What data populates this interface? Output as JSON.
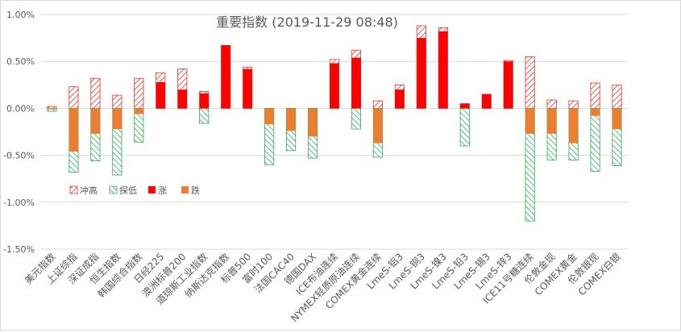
{
  "chart_data": {
    "type": "bar",
    "title": "重要指数 (2019-11-29 08:48)",
    "xlabel": "",
    "ylabel": "",
    "ylim": [
      -0.015,
      0.01
    ],
    "yticks": [
      "1.00%",
      "0.50%",
      "0.00%",
      "-0.50%",
      "-1.00%",
      "-1.50%"
    ],
    "ytick_values": [
      0.01,
      0.005,
      0.0,
      -0.005,
      -0.01,
      -0.015
    ],
    "grid": true,
    "legend_position": "lower-left",
    "legend": [
      {
        "name": "冲高",
        "style": "hatch",
        "color": "#e0302a"
      },
      {
        "name": "探低",
        "style": "hatch",
        "color": "#2eaa5a"
      },
      {
        "name": "涨",
        "style": "solid",
        "color": "#ff0000"
      },
      {
        "name": "跌",
        "style": "solid",
        "color": "#ed7d31"
      }
    ],
    "categories": [
      "美元指数",
      "上证综指",
      "深证成指",
      "恒生指数",
      "韩国综合指数",
      "日经225",
      "澳洲标普200",
      "道琼斯工业指数",
      "纳斯达克指数",
      "标普500",
      "富时100",
      "法国CAC40",
      "德国DAX",
      "ICE布油连续",
      "NYMEX轻质原油连续",
      "COMEX黄金连续",
      "LmeS-铝3",
      "LmeS-铜3",
      "LmeS-镍3",
      "LmeS-铅3",
      "LmeS-锡3",
      "LmeS-锌3",
      "ICE11号糖连续",
      "伦敦金现",
      "COMEX黄金",
      "伦敦银现",
      "COMEX白银"
    ],
    "series": [
      {
        "name": "冲高",
        "values": [
          0.0002,
          0.0023,
          0.0032,
          0.0014,
          0.0032,
          0.0038,
          0.0042,
          0.0018,
          0.0067,
          0.0044,
          0.0,
          0.0,
          0.0,
          0.0052,
          0.0062,
          0.0008,
          0.0025,
          0.0088,
          0.0086,
          0.0005,
          0.0015,
          0.0051,
          0.0055,
          0.0009,
          0.0008,
          0.0027,
          0.0025
        ]
      },
      {
        "name": "探低",
        "values": [
          -0.0003,
          -0.0068,
          -0.0056,
          -0.0071,
          -0.0036,
          0.0,
          0.0,
          -0.0016,
          0.0,
          0.0,
          -0.006,
          -0.0045,
          -0.0053,
          0.0,
          -0.0022,
          -0.0052,
          0.0,
          0.0,
          0.0,
          -0.004,
          0.0,
          0.0,
          -0.012,
          -0.0055,
          -0.0055,
          -0.0067,
          -0.0061
        ]
      },
      {
        "name": "涨",
        "values": [
          0.0,
          0.0,
          0.0,
          0.0,
          0.0,
          0.0028,
          0.002,
          0.0016,
          0.0067,
          0.0042,
          0.0,
          0.0,
          0.0,
          0.0048,
          0.0054,
          0.0,
          0.002,
          0.0075,
          0.0082,
          0.0005,
          0.0015,
          0.005,
          0.0,
          0.0,
          0.0,
          0.0,
          0.0
        ]
      },
      {
        "name": "跌",
        "values": [
          -0.0001,
          -0.0046,
          -0.0027,
          -0.0022,
          -0.0006,
          0.0,
          0.0,
          0.0,
          0.0,
          0.0,
          -0.0017,
          -0.0024,
          -0.003,
          0.0,
          0.0,
          -0.0037,
          0.0,
          0.0,
          0.0,
          0.0,
          0.0,
          0.0,
          -0.0027,
          -0.0027,
          -0.0037,
          -0.0008,
          -0.0022
        ]
      }
    ]
  }
}
